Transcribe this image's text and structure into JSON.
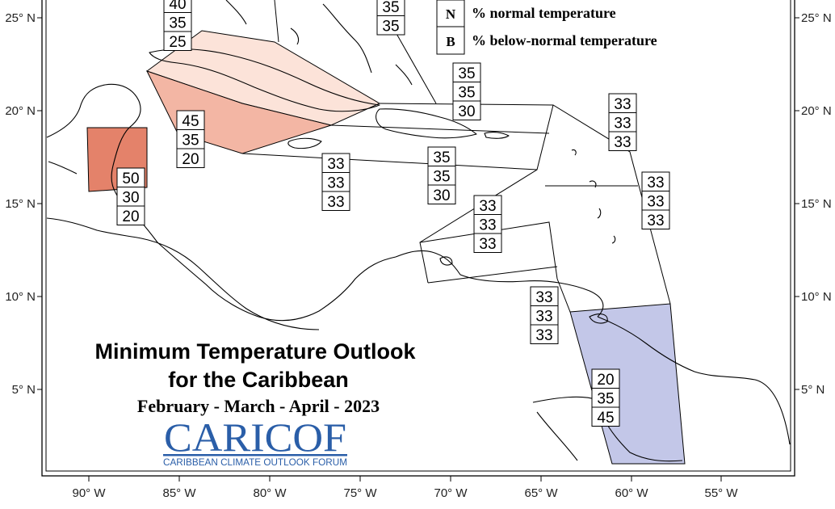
{
  "title": {
    "line1": "Minimum Temperature Outlook",
    "line2": "for the Caribbean",
    "period": "February - March - April - 2023"
  },
  "logo": {
    "text": "CARICOF",
    "subtitle": "CARIBBEAN CLIMATE OUTLOOK FORUM",
    "color": "#2a5ea8"
  },
  "legend": [
    {
      "key": "N",
      "label": "% normal temperature"
    },
    {
      "key": "B",
      "label": "% below-normal temperature"
    }
  ],
  "axes": {
    "x_ticks": [
      "90° W",
      "85° W",
      "80° W",
      "75° W",
      "70° W",
      "65° W",
      "60° W",
      "55° W"
    ],
    "y_ticks": [
      "25° N",
      "20° N",
      "15° N",
      "10° N",
      "5° N"
    ]
  },
  "colors": {
    "above_high": "#e4826a",
    "above_mid": "#f3b6a4",
    "above_low": "#fce3d9",
    "below": "#c3c7e8"
  },
  "regions": [
    {
      "id": "bahamas-north",
      "values": [
        "40",
        "35",
        "25"
      ]
    },
    {
      "id": "turks-caicos",
      "values": [
        "35",
        "35"
      ]
    },
    {
      "id": "cuba-west",
      "values": [
        "45",
        "35",
        "20"
      ]
    },
    {
      "id": "belize",
      "values": [
        "50",
        "30",
        "20"
      ]
    },
    {
      "id": "jamaica",
      "values": [
        "33",
        "33",
        "33"
      ]
    },
    {
      "id": "hispaniola",
      "values": [
        "35",
        "35",
        "30"
      ]
    },
    {
      "id": "puerto-rico",
      "values": [
        "35",
        "35",
        "30"
      ]
    },
    {
      "id": "leeward-north",
      "values": [
        "33",
        "33",
        "33"
      ]
    },
    {
      "id": "windward",
      "values": [
        "33",
        "33",
        "33"
      ]
    },
    {
      "id": "caribbean-sea",
      "values": [
        "33",
        "33",
        "33"
      ]
    },
    {
      "id": "trinidad",
      "values": [
        "33",
        "33",
        "33"
      ]
    },
    {
      "id": "guianas",
      "values": [
        "20",
        "35",
        "45"
      ]
    }
  ]
}
